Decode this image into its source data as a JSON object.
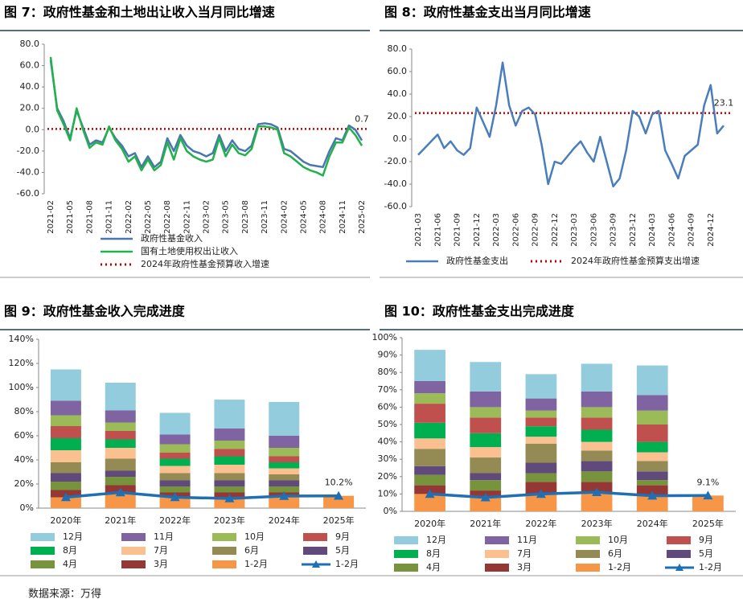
{
  "chart_data": [
    {
      "type": "line",
      "title": "图 7：政府性基金和土地出让收入当月同比增速",
      "categories": [
        "2021-02",
        null,
        null,
        "2021-05",
        null,
        null,
        "2021-08",
        null,
        null,
        "2021-11",
        null,
        null,
        "2022-02",
        null,
        null,
        "2022-05",
        null,
        null,
        "2022-08",
        null,
        null,
        "2022-11",
        null,
        null,
        "2023-02",
        null,
        null,
        "2023-05",
        null,
        null,
        "2023-08",
        null,
        null,
        "2023-11",
        null,
        null,
        "2024-02",
        null,
        null,
        "2024-05",
        null,
        null,
        "2024-08",
        null,
        null,
        "2024-11",
        null,
        null,
        "2025-02"
      ],
      "series": [
        {
          "name": "政府性基金收入",
          "color": "#4a76b0",
          "values": [
            65,
            20,
            8,
            -8,
            18,
            2,
            -14,
            -10,
            -12,
            2,
            -8,
            -15,
            -25,
            -22,
            -35,
            -25,
            -35,
            -30,
            -8,
            -20,
            -5,
            -15,
            -20,
            -22,
            -25,
            -22,
            -5,
            -20,
            -10,
            -18,
            -20,
            -15,
            5,
            6,
            5,
            2,
            -18,
            -20,
            -25,
            -30,
            -33,
            -34,
            -35,
            -20,
            -8,
            -10,
            4,
            0,
            -10
          ]
        },
        {
          "name": "国有土地使用权出让收入",
          "color": "#22b14c",
          "values": [
            68,
            18,
            5,
            -10,
            20,
            0,
            -17,
            -12,
            -14,
            3,
            -10,
            -18,
            -30,
            -25,
            -38,
            -28,
            -38,
            -33,
            -12,
            -28,
            -8,
            -20,
            -25,
            -28,
            -30,
            -28,
            -8,
            -25,
            -14,
            -22,
            -24,
            -18,
            3,
            3,
            2,
            0,
            -22,
            -25,
            -30,
            -35,
            -38,
            -40,
            -43,
            -25,
            -12,
            -12,
            2,
            -5,
            -15
          ]
        }
      ],
      "reference_lines": [
        {
          "name": "2024年政府性基金预算收入增速",
          "value": 0.7,
          "color": "#c00000"
        }
      ],
      "ylim": [
        -60,
        80
      ],
      "yticks": [
        {
          "value": -60,
          "label": "-60.0"
        },
        {
          "value": -40,
          "label": "-40.0"
        },
        {
          "value": -20,
          "label": "-20.0"
        },
        {
          "value": 0,
          "label": "0.0"
        },
        {
          "value": 20,
          "label": "20.0"
        },
        {
          "value": 40,
          "label": "40.0"
        },
        {
          "value": 60,
          "label": "60.0"
        },
        {
          "value": 80,
          "label": "80.0"
        }
      ]
    },
    {
      "type": "line",
      "title": "图 8：政府性基金支出当月同比增速",
      "categories": [
        "2021-03",
        null,
        null,
        "2021-06",
        null,
        null,
        "2021-09",
        null,
        null,
        "2021-12",
        null,
        null,
        "2022-03",
        null,
        null,
        "2022-06",
        null,
        null,
        "2022-09",
        null,
        null,
        "2022-12",
        null,
        null,
        "2023-03",
        null,
        null,
        "2023-06",
        null,
        null,
        "2023-09",
        null,
        null,
        "2023-12",
        null,
        null,
        "2024-03",
        null,
        null,
        "2024-06",
        null,
        null,
        "2024-09",
        null,
        null,
        "2024-12",
        null,
        null
      ],
      "series": [
        {
          "name": "政府性基金支出",
          "color": "#4a7ebb",
          "values": [
            -14,
            -8,
            -2,
            4,
            -8,
            -2,
            -10,
            -14,
            -8,
            28,
            15,
            2,
            30,
            68,
            30,
            12,
            25,
            28,
            22,
            -5,
            -40,
            -20,
            -22,
            -15,
            -8,
            -2,
            -12,
            -20,
            2,
            -20,
            -42,
            -35,
            -10,
            25,
            20,
            5,
            22,
            25,
            -10,
            -22,
            -35,
            -15,
            -10,
            -5,
            30,
            48,
            5,
            12
          ]
        }
      ],
      "reference_lines": [
        {
          "name": "2024年政府性基金预算支出增速",
          "value": 23.1,
          "color": "#c00000"
        }
      ],
      "ylim": [
        -60,
        80
      ],
      "yticks": [
        {
          "value": -60,
          "label": "-60.0"
        },
        {
          "value": -40,
          "label": "-40.0"
        },
        {
          "value": -20,
          "label": "-20.0"
        },
        {
          "value": 0,
          "label": "0.0"
        },
        {
          "value": 20,
          "label": "20.0"
        },
        {
          "value": 40,
          "label": "40.0"
        },
        {
          "value": 60,
          "label": "60.0"
        },
        {
          "value": 80,
          "label": "80.0"
        }
      ]
    },
    {
      "type": "stacked_bar",
      "title": "图 9：政府性基金收入完成进度",
      "categories": [
        "2020年",
        "2021年",
        "2022年",
        "2023年",
        "2024年",
        "2025年"
      ],
      "series": [
        {
          "name": "1-2月",
          "color": "#f79646",
          "values": [
            9,
            13,
            9,
            8,
            10,
            10.2
          ]
        },
        {
          "name": "3月",
          "color": "#953735",
          "values": [
            6,
            6,
            4,
            5,
            3,
            null
          ]
        },
        {
          "name": "4月",
          "color": "#77933c",
          "values": [
            7,
            7,
            5,
            5,
            5,
            null
          ]
        },
        {
          "name": "5月",
          "color": "#604a7b",
          "values": [
            7,
            5,
            5,
            5,
            5,
            null
          ]
        },
        {
          "name": "6月",
          "color": "#948a54",
          "values": [
            9,
            10,
            6,
            6,
            5,
            null
          ]
        },
        {
          "name": "7月",
          "color": "#fac090",
          "values": [
            10,
            9,
            6,
            7,
            5,
            null
          ]
        },
        {
          "name": "8月",
          "color": "#00b050",
          "values": [
            10,
            7,
            6,
            7,
            5,
            null
          ]
        },
        {
          "name": "9月",
          "color": "#c0504d",
          "values": [
            10,
            7,
            5,
            6,
            5,
            null
          ]
        },
        {
          "name": "10月",
          "color": "#9bbb59",
          "values": [
            9,
            7,
            7,
            7,
            7,
            null
          ]
        },
        {
          "name": "11月",
          "color": "#8064a2",
          "values": [
            12,
            10,
            8,
            10,
            10,
            null
          ]
        },
        {
          "name": "12月",
          "color": "#93cddd",
          "values": [
            26,
            23,
            18,
            24,
            28,
            null
          ]
        },
        {
          "name": "1-2月",
          "type": "line",
          "color": "#1f6fb4",
          "values": [
            9,
            13,
            9,
            8,
            10,
            10.2
          ],
          "value_labels": [
            null,
            null,
            null,
            null,
            null,
            "10.2%"
          ]
        }
      ],
      "ylim": [
        0,
        140
      ],
      "yticks": [
        {
          "value": 0,
          "label": "0%"
        },
        {
          "value": 20,
          "label": "20%"
        },
        {
          "value": 40,
          "label": "40%"
        },
        {
          "value": 60,
          "label": "60%"
        },
        {
          "value": 80,
          "label": "80%"
        },
        {
          "value": 100,
          "label": "100%"
        },
        {
          "value": 120,
          "label": "120%"
        },
        {
          "value": 140,
          "label": "140%"
        }
      ]
    },
    {
      "type": "stacked_bar",
      "title": "图 10：政府性基金支出完成进度",
      "categories": [
        "2020年",
        "2021年",
        "2022年",
        "2023年",
        "2024年",
        "2025年"
      ],
      "series": [
        {
          "name": "1-2月",
          "color": "#f79646",
          "values": [
            10,
            8,
            10,
            11,
            9,
            9.1
          ]
        },
        {
          "name": "3月",
          "color": "#953735",
          "values": [
            5,
            4,
            7,
            6,
            6,
            null
          ]
        },
        {
          "name": "4月",
          "color": "#77933c",
          "values": [
            6,
            6,
            5,
            6,
            3,
            null
          ]
        },
        {
          "name": "5月",
          "color": "#604a7b",
          "values": [
            5,
            4,
            6,
            6,
            5,
            null
          ]
        },
        {
          "name": "6月",
          "color": "#948a54",
          "values": [
            10,
            9,
            11,
            6,
            6,
            null
          ]
        },
        {
          "name": "7月",
          "color": "#fac090",
          "values": [
            6,
            6,
            4,
            5,
            5,
            null
          ]
        },
        {
          "name": "8月",
          "color": "#00b050",
          "values": [
            9,
            8,
            6,
            7,
            6,
            null
          ]
        },
        {
          "name": "9月",
          "color": "#c0504d",
          "values": [
            11,
            9,
            5,
            7,
            10,
            null
          ]
        },
        {
          "name": "10月",
          "color": "#9bbb59",
          "values": [
            6,
            6,
            4,
            6,
            8,
            null
          ]
        },
        {
          "name": "11月",
          "color": "#8064a2",
          "values": [
            7,
            9,
            7,
            9,
            9,
            null
          ]
        },
        {
          "name": "12月",
          "color": "#93cddd",
          "values": [
            18,
            17,
            14,
            16,
            17,
            null
          ]
        },
        {
          "name": "1-2月",
          "type": "line",
          "color": "#1f6fb4",
          "values": [
            10,
            8,
            10,
            11,
            9,
            9.1
          ],
          "value_labels": [
            null,
            null,
            null,
            null,
            null,
            "9.1%"
          ]
        }
      ],
      "ylim": [
        0,
        100
      ],
      "yticks": [
        {
          "value": 0,
          "label": "0%"
        },
        {
          "value": 10,
          "label": "10%"
        },
        {
          "value": 20,
          "label": "20%"
        },
        {
          "value": 30,
          "label": "30%"
        },
        {
          "value": 40,
          "label": "40%"
        },
        {
          "value": 50,
          "label": "50%"
        },
        {
          "value": 60,
          "label": "60%"
        },
        {
          "value": 70,
          "label": "70%"
        },
        {
          "value": 80,
          "label": "80%"
        },
        {
          "value": 90,
          "label": "90%"
        },
        {
          "value": 100,
          "label": "100%"
        }
      ]
    }
  ],
  "source": "数据来源：万得"
}
